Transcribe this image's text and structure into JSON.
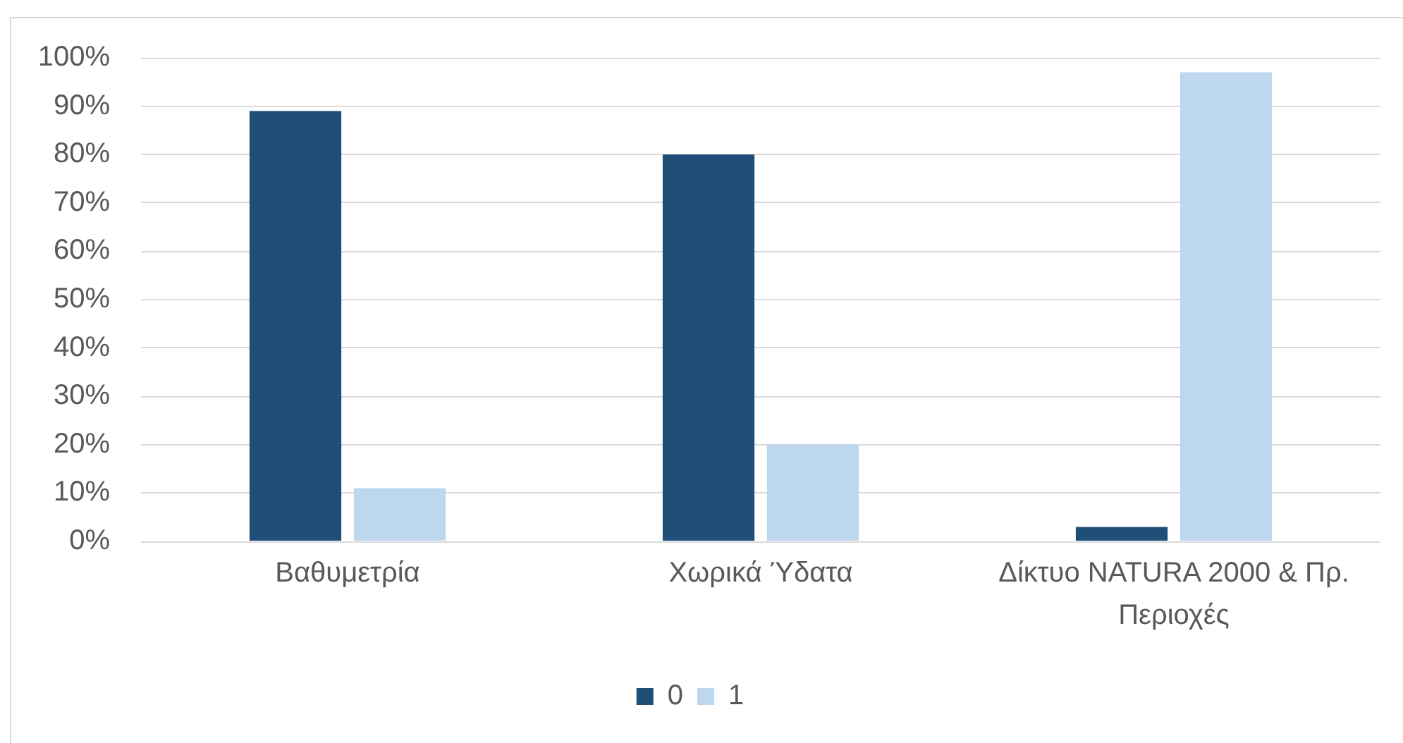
{
  "chart_data": {
    "type": "bar",
    "categories": [
      "Βαθυμετρία",
      "Χωρικά Ύδατα",
      "Δίκτυο NATURA 2000 & Πρ. Περιοχές"
    ],
    "series": [
      {
        "name": "0",
        "color": "#1f4e79",
        "values": [
          89,
          80,
          3
        ]
      },
      {
        "name": "1",
        "color": "#bdd7ee",
        "values": [
          11,
          20,
          97
        ]
      }
    ],
    "ylim": [
      0,
      100
    ],
    "yticks": [
      {
        "value": 0,
        "label": "0%"
      },
      {
        "value": 10,
        "label": "10%"
      },
      {
        "value": 20,
        "label": "20%"
      },
      {
        "value": 30,
        "label": "30%"
      },
      {
        "value": 40,
        "label": "40%"
      },
      {
        "value": 50,
        "label": "50%"
      },
      {
        "value": 60,
        "label": "60%"
      },
      {
        "value": 70,
        "label": "70%"
      },
      {
        "value": 80,
        "label": "80%"
      },
      {
        "value": 90,
        "label": "90%"
      },
      {
        "value": 100,
        "label": "100%"
      }
    ],
    "grid": "y",
    "legend": "bottom"
  }
}
